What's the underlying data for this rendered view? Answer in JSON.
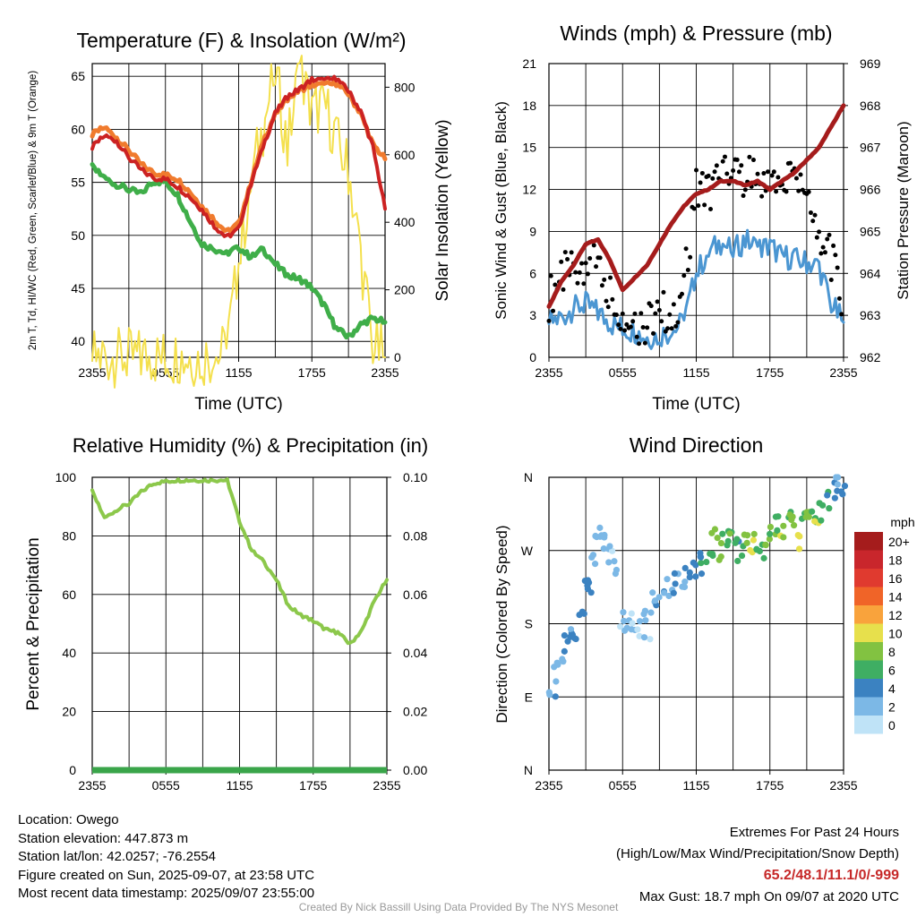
{
  "chart_data": [
    {
      "type": "line",
      "title": "Temperature (F) & Insolation (W/m²)",
      "xlabel": "Time (UTC)",
      "ylabel_left": "2m T, Td, HI/WC (Red, Green, Scarlet/Blue) & 9m T (Orange)",
      "ylabel_right": "Solar Insolation (Yellow)",
      "x_ticks": [
        "2355",
        "0555",
        "1155",
        "1755",
        "2355"
      ],
      "ylim_left": [
        38.5,
        66.2
      ],
      "yticks_left": [
        40,
        45,
        50,
        55,
        60,
        65
      ],
      "ylim_right": [
        0,
        870
      ],
      "yticks_right": [
        0,
        200,
        400,
        600,
        800
      ],
      "x_hours": [
        0,
        1,
        2,
        3,
        4,
        5,
        6,
        7,
        8,
        9,
        10,
        11,
        12,
        13,
        14,
        15,
        16,
        17,
        18,
        19,
        20,
        21,
        22,
        23,
        24
      ],
      "series": [
        {
          "name": "2m T",
          "color": "#cc2222",
          "axis": "left",
          "values": [
            58.3,
            59.4,
            58.9,
            57.3,
            56.2,
            55.4,
            55.3,
            54.6,
            53.6,
            52.4,
            50.9,
            49.8,
            50.6,
            54.8,
            58.4,
            61.5,
            63.1,
            63.8,
            64.7,
            64.6,
            64.8,
            63.6,
            61.7,
            58.4,
            52.5
          ]
        },
        {
          "name": "9m T",
          "color": "#f07b2e",
          "axis": "left",
          "values": [
            59.5,
            60.2,
            59.2,
            58.0,
            56.7,
            55.9,
            55.7,
            55.3,
            54.1,
            52.7,
            51.5,
            50.3,
            51.1,
            54.9,
            58.9,
            61.4,
            62.9,
            63.7,
            64.2,
            64.2,
            64.3,
            63.3,
            61.5,
            58.6,
            57.2
          ]
        },
        {
          "name": "Td",
          "color": "#3fae49",
          "axis": "left",
          "values": [
            56.4,
            55.4,
            54.8,
            54.3,
            53.9,
            55.1,
            55.0,
            53.8,
            51.4,
            49.2,
            48.7,
            48.3,
            48.9,
            47.9,
            48.7,
            47.3,
            46.2,
            45.9,
            45.1,
            43.4,
            41.2,
            40.4,
            41.6,
            42.2,
            41.8
          ]
        },
        {
          "name": "Solar Insolation",
          "color": "#f4e04d",
          "axis": "right",
          "values": [
            0,
            0,
            0,
            0,
            0,
            0,
            0,
            0,
            0,
            0,
            0,
            20,
            280,
            520,
            680,
            850,
            620,
            860,
            720,
            760,
            640,
            560,
            300,
            40,
            0
          ]
        }
      ]
    },
    {
      "type": "line",
      "title": "Winds (mph) & Pressure (mb)",
      "xlabel": "Time (UTC)",
      "ylabel_left": "Sonic Wind & Gust (Blue, Black)",
      "ylabel_right": "Station Pressure (Maroon)",
      "x_ticks": [
        "2355",
        "0555",
        "1155",
        "1755",
        "2355"
      ],
      "ylim_left": [
        0,
        21
      ],
      "yticks_left": [
        0,
        3,
        6,
        9,
        12,
        15,
        18,
        21
      ],
      "ylim_right": [
        962,
        969
      ],
      "yticks_right": [
        962,
        963,
        964,
        965,
        966,
        967,
        968,
        969
      ],
      "x_hours": [
        0,
        1,
        2,
        3,
        4,
        5,
        6,
        7,
        8,
        9,
        10,
        11,
        12,
        13,
        14,
        15,
        16,
        17,
        18,
        19,
        20,
        21,
        22,
        23,
        24
      ],
      "series": [
        {
          "name": "Sonic Wind",
          "color": "#4b96d2",
          "axis": "left",
          "values": [
            2.5,
            2.8,
            3.5,
            3.8,
            3.2,
            2.4,
            2.1,
            1.8,
            1.4,
            1.6,
            1.8,
            2.6,
            6.0,
            7.5,
            8.2,
            7.6,
            8.4,
            7.8,
            7.9,
            7.3,
            7.0,
            6.8,
            6.5,
            3.8,
            2.5
          ]
        },
        {
          "name": "Gust",
          "color": "#000000",
          "axis": "left",
          "values": [
            4.2,
            5.8,
            6.2,
            7.0,
            6.5,
            4.5,
            2.8,
            2.5,
            2.3,
            3.4,
            3.0,
            5.0,
            12.5,
            11.8,
            12.6,
            13.5,
            13.0,
            12.4,
            13.2,
            12.6,
            13.1,
            11.5,
            9.0,
            7.0,
            3.5
          ]
        },
        {
          "name": "Station Pressure",
          "color": "#a51c1c",
          "axis": "right",
          "values": [
            963.2,
            963.8,
            964.2,
            964.7,
            964.8,
            964.3,
            963.6,
            963.9,
            964.2,
            964.7,
            965.2,
            965.6,
            965.9,
            966.0,
            966.2,
            966.2,
            966.1,
            966.2,
            966.0,
            966.2,
            966.4,
            966.7,
            967.0,
            967.5,
            968.0
          ]
        }
      ]
    },
    {
      "type": "line",
      "title": "Relative Humidity (%) & Precipitation (in)",
      "ylabel": "Percent & Precipitation",
      "x_ticks": [
        "2355",
        "0555",
        "1155",
        "1755",
        "2355"
      ],
      "ylim_left": [
        0,
        100
      ],
      "yticks_left": [
        0,
        20,
        40,
        60,
        80,
        100
      ],
      "ylim_right": [
        0,
        0.1
      ],
      "yticks_right": [
        "0.00",
        "0.02",
        "0.04",
        "0.06",
        "0.08",
        "0.10"
      ],
      "x_hours": [
        0,
        1,
        2,
        3,
        4,
        5,
        6,
        7,
        8,
        9,
        10,
        11,
        12,
        13,
        14,
        15,
        16,
        17,
        18,
        19,
        20,
        21,
        22,
        23,
        24
      ],
      "series": [
        {
          "name": "Relative Humidity",
          "color": "#8cc84b",
          "axis": "left",
          "values": [
            95,
            86,
            89,
            91,
            95,
            98,
            98.5,
            99,
            99,
            99,
            99,
            99,
            85,
            75,
            71,
            65,
            56,
            53,
            51,
            48,
            47,
            43,
            48,
            58,
            65
          ]
        },
        {
          "name": "Precipitation",
          "color": "#3aa54a",
          "axis": "right",
          "values": [
            0,
            0,
            0,
            0,
            0,
            0,
            0,
            0,
            0,
            0,
            0,
            0,
            0,
            0,
            0,
            0,
            0,
            0,
            0,
            0,
            0,
            0,
            0,
            0,
            0
          ]
        }
      ]
    },
    {
      "type": "scatter",
      "title": "Wind Direction",
      "ylabel": "Direction (Colored By Speed)",
      "x_ticks": [
        "2355",
        "0555",
        "1155",
        "1755",
        "2355"
      ],
      "y_ticks": [
        "N",
        "E",
        "S",
        "W",
        "N"
      ],
      "ylim": [
        0,
        360
      ],
      "legend_title": "mph",
      "legend_labels": [
        "20+",
        "18",
        "16",
        "14",
        "12",
        "10",
        "8",
        "6",
        "4",
        "2",
        "0"
      ],
      "legend_colors": [
        "#a51c1c",
        "#c9262c",
        "#e03a2f",
        "#f06428",
        "#f9a33c",
        "#e7e04c",
        "#82c241",
        "#3fae63",
        "#3b82c1",
        "#7cb8e6",
        "#bfe3f7"
      ],
      "points": [
        {
          "hour": 0.3,
          "dir": 94,
          "speed": 3
        },
        {
          "hour": 0.6,
          "dir": 118,
          "speed": 2
        },
        {
          "hour": 0.9,
          "dir": 132,
          "speed": 3
        },
        {
          "hour": 1.3,
          "dir": 152,
          "speed": 3
        },
        {
          "hour": 1.7,
          "dir": 161,
          "speed": 3
        },
        {
          "hour": 2.2,
          "dir": 172,
          "speed": 4
        },
        {
          "hour": 2.6,
          "dir": 200,
          "speed": 4
        },
        {
          "hour": 2.9,
          "dir": 230,
          "speed": 4
        },
        {
          "hour": 3.2,
          "dir": 228,
          "speed": 4
        },
        {
          "hour": 3.6,
          "dir": 265,
          "speed": 2
        },
        {
          "hour": 4.0,
          "dir": 280,
          "speed": 2
        },
        {
          "hour": 4.3,
          "dir": 298,
          "speed": 2
        },
        {
          "hour": 4.7,
          "dir": 285,
          "speed": 2
        },
        {
          "hour": 5.1,
          "dir": 262,
          "speed": 1
        },
        {
          "hour": 5.5,
          "dir": 248,
          "speed": 2
        },
        {
          "hour": 6.0,
          "dir": 185,
          "speed": 1
        },
        {
          "hour": 6.4,
          "dir": 172,
          "speed": 2
        },
        {
          "hour": 6.8,
          "dir": 180,
          "speed": 1
        },
        {
          "hour": 7.2,
          "dir": 166,
          "speed": 1
        },
        {
          "hour": 7.6,
          "dir": 192,
          "speed": 2
        },
        {
          "hour": 8.0,
          "dir": 175,
          "speed": 1
        },
        {
          "hour": 8.4,
          "dir": 205,
          "speed": 2
        },
        {
          "hour": 8.9,
          "dir": 212,
          "speed": 3
        },
        {
          "hour": 9.4,
          "dir": 226,
          "speed": 3
        },
        {
          "hour": 9.9,
          "dir": 218,
          "speed": 3
        },
        {
          "hour": 10.4,
          "dir": 232,
          "speed": 3
        },
        {
          "hour": 10.9,
          "dir": 228,
          "speed": 2
        },
        {
          "hour": 11.3,
          "dir": 236,
          "speed": 4
        },
        {
          "hour": 11.8,
          "dir": 242,
          "speed": 4
        },
        {
          "hour": 12.2,
          "dir": 255,
          "speed": 5
        },
        {
          "hour": 12.6,
          "dir": 262,
          "speed": 5
        },
        {
          "hour": 13.1,
          "dir": 270,
          "speed": 6
        },
        {
          "hour": 13.5,
          "dir": 285,
          "speed": 7
        },
        {
          "hour": 13.9,
          "dir": 268,
          "speed": 8
        },
        {
          "hour": 14.4,
          "dir": 278,
          "speed": 6
        },
        {
          "hour": 14.8,
          "dir": 282,
          "speed": 7
        },
        {
          "hour": 15.2,
          "dir": 275,
          "speed": 5
        },
        {
          "hour": 15.6,
          "dir": 262,
          "speed": 6
        },
        {
          "hour": 16.1,
          "dir": 288,
          "speed": 8
        },
        {
          "hour": 16.5,
          "dir": 272,
          "speed": 10
        },
        {
          "hour": 16.9,
          "dir": 282,
          "speed": 7
        },
        {
          "hour": 17.3,
          "dir": 266,
          "speed": 6
        },
        {
          "hour": 17.8,
          "dir": 290,
          "speed": 8
        },
        {
          "hour": 18.2,
          "dir": 298,
          "speed": 7
        },
        {
          "hour": 18.6,
          "dir": 305,
          "speed": 6
        },
        {
          "hour": 19.1,
          "dir": 290,
          "speed": 9
        },
        {
          "hour": 19.5,
          "dir": 310,
          "speed": 7
        },
        {
          "hour": 19.9,
          "dir": 298,
          "speed": 8
        },
        {
          "hour": 20.3,
          "dir": 285,
          "speed": 10
        },
        {
          "hour": 20.7,
          "dir": 302,
          "speed": 7
        },
        {
          "hour": 21.1,
          "dir": 312,
          "speed": 8
        },
        {
          "hour": 21.5,
          "dir": 306,
          "speed": 6
        },
        {
          "hour": 21.9,
          "dir": 296,
          "speed": 10
        },
        {
          "hour": 22.3,
          "dir": 320,
          "speed": 6
        },
        {
          "hour": 22.8,
          "dir": 330,
          "speed": 5
        },
        {
          "hour": 23.3,
          "dir": 340,
          "speed": 4
        },
        {
          "hour": 23.6,
          "dir": 355,
          "speed": 2
        },
        {
          "hour": 23.9,
          "dir": 350,
          "speed": 3
        }
      ]
    }
  ],
  "info": {
    "location": "Location: Owego",
    "elevation": "Station elevation: 447.873 m",
    "latlon": "Station lat/lon: 42.0257; -76.2554",
    "created": "Figure created on Sun, 2025-09-07, at 23:58 UTC",
    "recent": "Most recent data timestamp: 2025/09/07 23:55:00"
  },
  "extremes": {
    "header": "Extremes For Past 24 Hours",
    "subheader": "(High/Low/Max Wind/Precipitation/Snow Depth)",
    "values": "65.2/48.1/11.1/0/-999",
    "values_color": "#c62828",
    "gust": "Max Gust: 18.7 mph On 09/07 at 2020 UTC"
  },
  "credit": "Created By Nick Bassill Using Data Provided By The NYS Mesonet"
}
